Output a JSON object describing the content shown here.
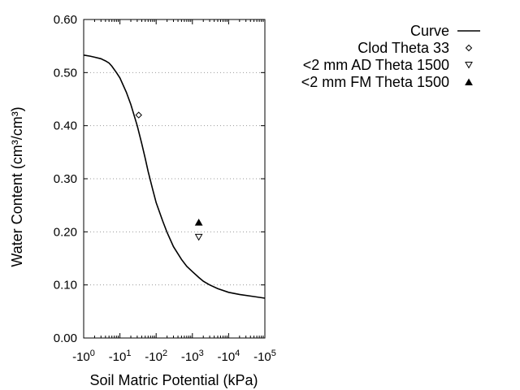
{
  "chart_data": {
    "type": "scatter",
    "xlabel": "Soil Matric Potential (kPa)",
    "ylabel": "Water Content (cm³/cm³)",
    "xscale": "log",
    "xlim": [
      1,
      100000
    ],
    "ylim": [
      0,
      0.6
    ],
    "grid": "horizontal dotted",
    "legend_position": "top-right",
    "x_ticks": [
      {
        "base": "-10",
        "exp": "0"
      },
      {
        "base": "-10",
        "exp": "1"
      },
      {
        "base": "-10",
        "exp": "2"
      },
      {
        "base": "-10",
        "exp": "3"
      },
      {
        "base": "-10",
        "exp": "4"
      },
      {
        "base": "-10",
        "exp": "5"
      }
    ],
    "y_ticks": [
      "0.00",
      "0.10",
      "0.20",
      "0.30",
      "0.40",
      "0.50",
      "0.60"
    ],
    "series": [
      {
        "name": "Curve",
        "kind": "line",
        "color": "#000000",
        "x": [
          1,
          1.5,
          2,
          3,
          4,
          5,
          6,
          8,
          10,
          15,
          20,
          30,
          40,
          50,
          60,
          80,
          100,
          150,
          200,
          300,
          500,
          700,
          1000,
          1500,
          2000,
          3000,
          5000,
          10000,
          20000,
          50000,
          100000
        ],
        "y": [
          0.533,
          0.531,
          0.529,
          0.526,
          0.522,
          0.518,
          0.512,
          0.5,
          0.49,
          0.463,
          0.44,
          0.4,
          0.366,
          0.338,
          0.314,
          0.28,
          0.255,
          0.221,
          0.199,
          0.172,
          0.148,
          0.135,
          0.125,
          0.114,
          0.107,
          0.1,
          0.093,
          0.086,
          0.082,
          0.078,
          0.075
        ]
      },
      {
        "name": "Clod Theta 33",
        "kind": "marker",
        "marker": "diamond-open",
        "x": [
          33
        ],
        "y": [
          0.42
        ]
      },
      {
        "name": "<2 mm AD Theta 1500",
        "kind": "marker",
        "marker": "triangle-down-open",
        "x": [
          1500
        ],
        "y": [
          0.19
        ]
      },
      {
        "name": "<2 mm FM Theta 1500",
        "kind": "marker",
        "marker": "triangle-up-filled",
        "x": [
          1500
        ],
        "y": [
          0.218
        ]
      }
    ]
  }
}
